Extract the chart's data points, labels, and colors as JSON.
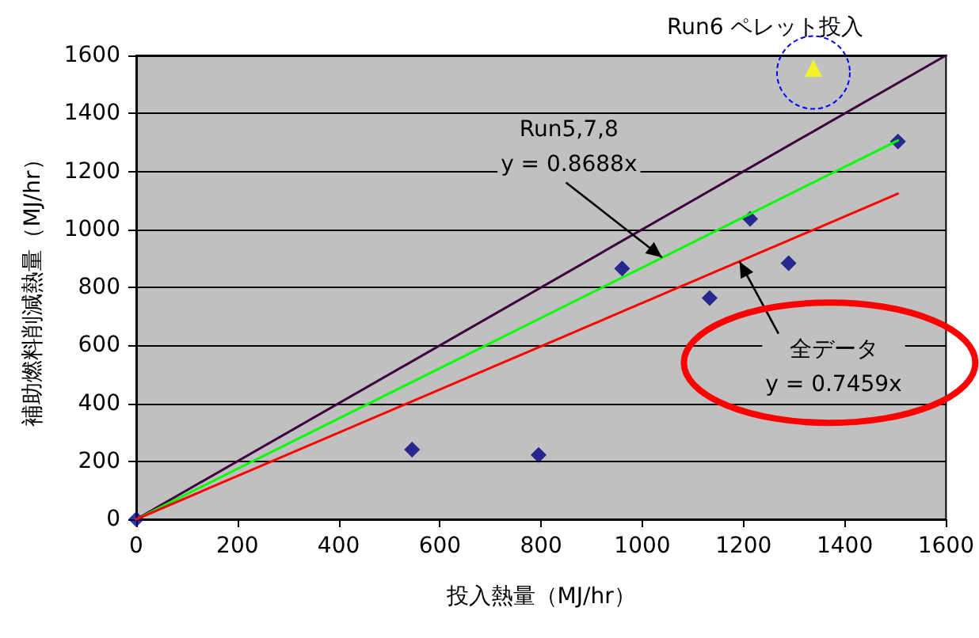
{
  "chart_data": {
    "type": "scatter",
    "xlabel": "投入熱量（MJ/hr）",
    "ylabel": "補助燃料削減熱量（MJ/hr）",
    "xlim": [
      0,
      1600
    ],
    "xticks": [
      0,
      200,
      400,
      600,
      800,
      1000,
      1200,
      1400,
      1600
    ],
    "ylim": [
      0,
      1600
    ],
    "yticks": [
      0,
      200,
      400,
      600,
      800,
      1000,
      1200,
      1400,
      1600
    ],
    "grid": "y",
    "annotations": [
      "Run6 ペレット投入",
      {
        "text": "Run5,7,8\ny = 0.8688x",
        "x": 1039,
        "y": 903
      },
      {
        "text": "全データ\ny = 0.7459x",
        "x": 1192,
        "y": 889
      }
    ],
    "series": [
      {
        "type": "line",
        "color": "#400040",
        "x": [
          0,
          1600
        ],
        "values": [
          0,
          1600
        ],
        "marker": "none"
      },
      {
        "type": "line",
        "color": "#00ff00",
        "x": [
          0,
          1505
        ],
        "values": [
          0,
          1307
        ],
        "marker": "none"
      },
      {
        "type": "line",
        "color": "#ff0000",
        "x": [
          0,
          1505
        ],
        "values": [
          0,
          1123
        ],
        "marker": "none"
      },
      {
        "color": "#000080",
        "x": [
          0,
          545,
          795,
          960,
          1133,
          1213,
          1289,
          1505
        ],
        "values": [
          0,
          240,
          222,
          865,
          763,
          1036,
          883,
          1303
        ],
        "marker": "diamond"
      },
      {
        "color": "#ffff00",
        "x": [
          1338
        ],
        "values": [
          1556
        ],
        "marker": "triangle"
      }
    ]
  }
}
